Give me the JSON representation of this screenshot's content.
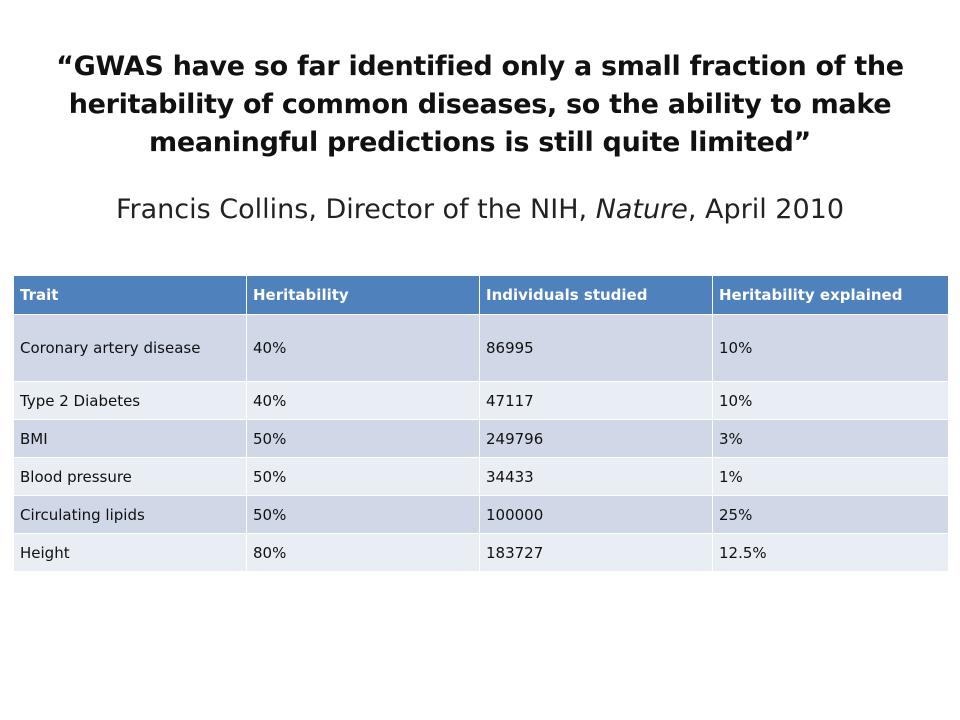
{
  "quote": {
    "text": "“GWAS have so far identified only a small fraction of the heritability of common diseases, so the ability to make meaningful predictions is still quite limited”"
  },
  "attribution": {
    "before": "Francis Collins, Director of the NIH, ",
    "journal": "Nature",
    "after": ", April 2010"
  },
  "table": {
    "headers": [
      "Trait",
      "Heritability",
      "Individuals studied",
      "Heritability explained"
    ],
    "rows": [
      [
        "Coronary artery disease",
        "40%",
        "86995",
        "10%"
      ],
      [
        "Type 2 Diabetes",
        "40%",
        "47117",
        "10%"
      ],
      [
        "BMI",
        "50%",
        "249796",
        "3%"
      ],
      [
        "Blood pressure",
        "50%",
        "34433",
        "1%"
      ],
      [
        "Circulating lipids",
        "50%",
        "100000",
        "25%"
      ],
      [
        "Height",
        "80%",
        "183727",
        "12.5%"
      ]
    ]
  },
  "colors": {
    "header_bg": "#4f81bd",
    "row_dark": "#d0d8e8",
    "row_light": "#e9edf4"
  }
}
